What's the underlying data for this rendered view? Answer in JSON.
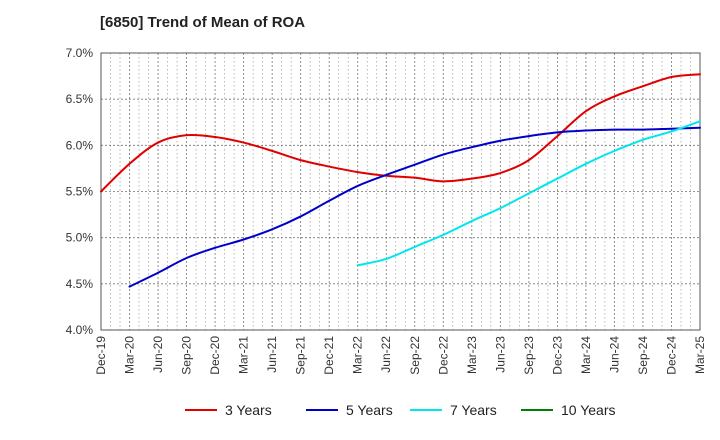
{
  "chart_data": {
    "type": "line",
    "title": "[6850]  Trend of Mean of ROA",
    "ylim": [
      4.0,
      7.0
    ],
    "y_ticks": [
      "4.0%",
      "4.5%",
      "5.0%",
      "5.5%",
      "6.0%",
      "6.5%",
      "7.0%"
    ],
    "x_ticks": [
      "Dec-19",
      "Mar-20",
      "Jun-20",
      "Sep-20",
      "Dec-20",
      "Mar-21",
      "Jun-21",
      "Sep-21",
      "Dec-21",
      "Mar-22",
      "Jun-22",
      "Sep-22",
      "Dec-22",
      "Mar-23",
      "Jun-23",
      "Sep-23",
      "Dec-23",
      "Mar-24",
      "Jun-24",
      "Sep-24",
      "Dec-24",
      "Mar-25"
    ],
    "grid": true,
    "legend_position": "bottom",
    "series": [
      {
        "name": "3 Years",
        "color": "#e00000",
        "points": [
          [
            0,
            5.5
          ],
          [
            1,
            5.8
          ],
          [
            2,
            6.03
          ],
          [
            3,
            6.11
          ],
          [
            4,
            6.09
          ],
          [
            5,
            6.03
          ],
          [
            6,
            5.94
          ],
          [
            7,
            5.84
          ],
          [
            8,
            5.77
          ],
          [
            9,
            5.71
          ],
          [
            10,
            5.67
          ],
          [
            11,
            5.65
          ],
          [
            12,
            5.61
          ],
          [
            13,
            5.64
          ],
          [
            14,
            5.7
          ],
          [
            15,
            5.84
          ],
          [
            16,
            6.1
          ],
          [
            17,
            6.37
          ],
          [
            18,
            6.53
          ],
          [
            19,
            6.64
          ],
          [
            20,
            6.74
          ],
          [
            21,
            6.77
          ]
        ]
      },
      {
        "name": "5 Years",
        "color": "#0000cc",
        "points": [
          [
            1,
            4.47
          ],
          [
            2,
            4.62
          ],
          [
            3,
            4.78
          ],
          [
            4,
            4.89
          ],
          [
            5,
            4.98
          ],
          [
            6,
            5.09
          ],
          [
            7,
            5.23
          ],
          [
            8,
            5.4
          ],
          [
            9,
            5.56
          ],
          [
            10,
            5.68
          ],
          [
            11,
            5.79
          ],
          [
            12,
            5.9
          ],
          [
            13,
            5.98
          ],
          [
            14,
            6.05
          ],
          [
            15,
            6.1
          ],
          [
            16,
            6.14
          ],
          [
            17,
            6.16
          ],
          [
            18,
            6.17
          ],
          [
            19,
            6.17
          ],
          [
            20,
            6.18
          ],
          [
            21,
            6.19
          ]
        ]
      },
      {
        "name": "7 Years",
        "color": "#00e5ee",
        "points": [
          [
            9,
            4.7
          ],
          [
            10,
            4.77
          ],
          [
            11,
            4.9
          ],
          [
            12,
            5.03
          ],
          [
            13,
            5.18
          ],
          [
            14,
            5.32
          ],
          [
            15,
            5.48
          ],
          [
            16,
            5.64
          ],
          [
            17,
            5.8
          ],
          [
            18,
            5.94
          ],
          [
            19,
            6.06
          ],
          [
            20,
            6.15
          ],
          [
            21,
            6.26
          ]
        ]
      },
      {
        "name": "10 Years",
        "color": "#008000",
        "points": []
      }
    ]
  }
}
